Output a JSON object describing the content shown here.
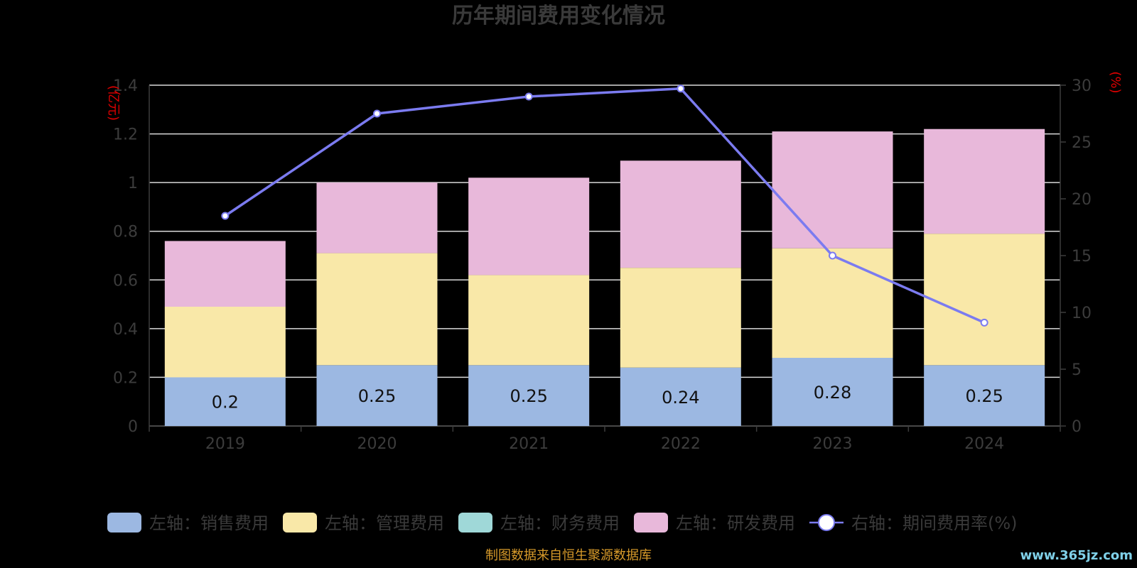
{
  "chart_data": {
    "type": "bar",
    "title": "历年期间费用变化情况",
    "categories": [
      "2019",
      "2020",
      "2021",
      "2022",
      "2023",
      "2024"
    ],
    "left_axis": {
      "unit_label": "(亿元)",
      "ylim": [
        0,
        1.4
      ],
      "ticks": [
        "0",
        "0.2",
        "0.4",
        "0.6",
        "0.8",
        "1",
        "1.2",
        "1.4"
      ]
    },
    "right_axis": {
      "unit_label": "(%)",
      "ylim": [
        0,
        30
      ],
      "ticks": [
        "0",
        "5",
        "10",
        "15",
        "20",
        "25",
        "30"
      ]
    },
    "series": [
      {
        "name": "左轴：销售费用",
        "kind": "bar",
        "axis": "left",
        "color": "#9cb8e2",
        "values": [
          0.2,
          0.25,
          0.25,
          0.24,
          0.28,
          0.25
        ],
        "show_labels": true,
        "labels": [
          "0.2",
          "0.25",
          "0.25",
          "0.24",
          "0.28",
          "0.25"
        ]
      },
      {
        "name": "左轴：管理费用",
        "kind": "bar",
        "axis": "left",
        "color": "#f9e8a8",
        "values": [
          0.29,
          0.46,
          0.37,
          0.41,
          0.45,
          0.54
        ]
      },
      {
        "name": "左轴：财务费用",
        "kind": "bar",
        "axis": "left",
        "color": "#9fd8d8",
        "values": [
          0,
          0,
          0,
          0,
          0,
          0
        ]
      },
      {
        "name": "左轴：研发费用",
        "kind": "bar",
        "axis": "left",
        "color": "#e8b8da",
        "values": [
          0.27,
          0.29,
          0.4,
          0.44,
          0.48,
          0.43
        ]
      },
      {
        "name": "右轴：期间费用率(%)",
        "kind": "line",
        "axis": "right",
        "color": "#7b7bf0",
        "values": [
          18.5,
          27.5,
          29.0,
          29.7,
          15.0,
          9.1
        ]
      }
    ],
    "grid": true,
    "legend_position": "bottom"
  },
  "footer": {
    "source": "制图数据来自恒生聚源数据库",
    "watermark": "www.365jz.com"
  }
}
